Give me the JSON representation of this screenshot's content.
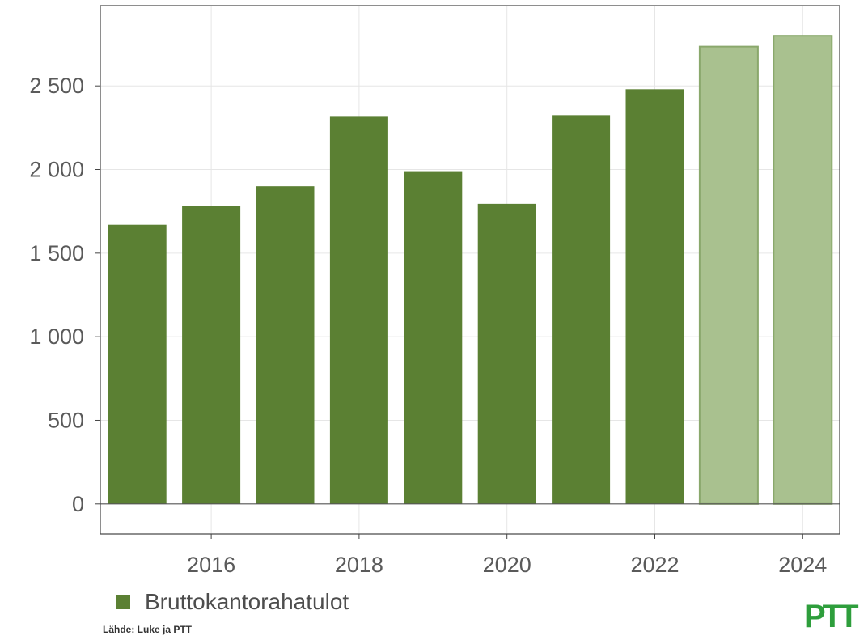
{
  "chart_data": {
    "type": "bar",
    "x": [
      2015,
      2016,
      2017,
      2018,
      2019,
      2020,
      2021,
      2022,
      2023,
      2024
    ],
    "series": [
      {
        "name": "Bruttokantorahatulot",
        "values": [
          1670,
          1780,
          1900,
          2320,
          1990,
          1795,
          2325,
          2480,
          2735,
          2800
        ]
      }
    ],
    "projected_from": 2023,
    "x_ticks": [
      2016,
      2018,
      2020,
      2022,
      2024
    ],
    "y_ticks": [
      0,
      500,
      1000,
      1500,
      2000,
      2500
    ],
    "y_tick_labels": [
      "0",
      "500",
      "1 000",
      "1 500",
      "2 000",
      "2 500"
    ],
    "xlim": [
      2014.5,
      2024.5
    ],
    "ylim": [
      -180,
      2980
    ],
    "grid": true,
    "legend_position": "bottom-left",
    "colors": {
      "actual": "#5b8033",
      "projected": "#a9c18f",
      "projected_border": "#8aa86c",
      "grid": "#e6e6e6",
      "axis": "#444444"
    }
  },
  "legend": {
    "label": "Bruttokantorahatulot"
  },
  "source": "Lähde: Luke ja PTT",
  "logo": {
    "text": "PTT",
    "color": "#2e9e3c"
  }
}
